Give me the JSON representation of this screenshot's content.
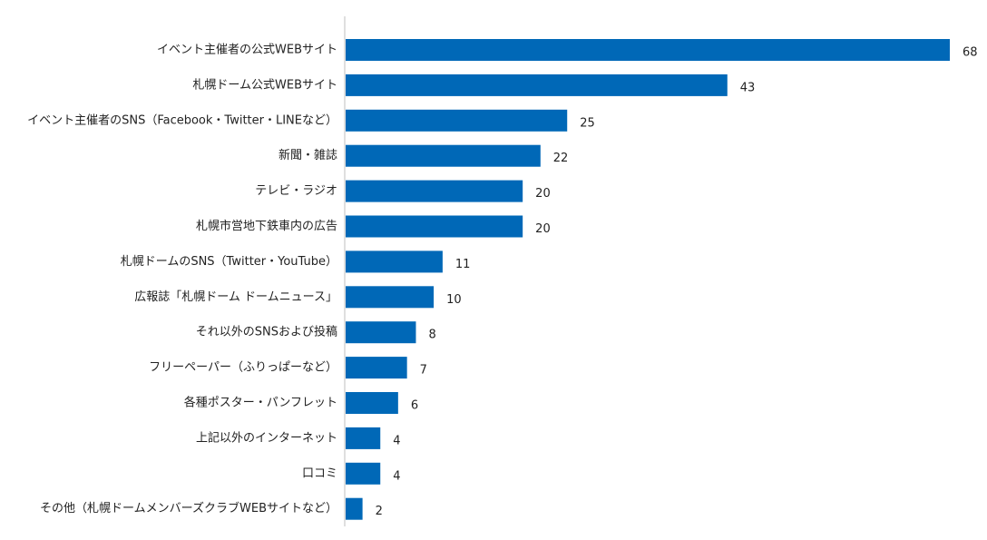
{
  "chart_data": {
    "type": "bar",
    "orientation": "horizontal",
    "title": "",
    "xlabel": "",
    "ylabel": "",
    "xlim": [
      0,
      70
    ],
    "grid": false,
    "legend": "none",
    "bar_color": "#0068b7",
    "axis_color": "#bfbfbf",
    "categories": [
      "イベント主催者の公式WEBサイト",
      "札幌ドーム公式WEBサイト",
      "イベント主催者のSNS（Facebook・Twitter・LINEなど）",
      "新聞・雑誌",
      "テレビ・ラジオ",
      "札幌市営地下鉄車内の広告",
      "札幌ドームのSNS（Twitter・YouTube）",
      "広報誌「札幌ドーム ドームニュース」",
      "それ以外のSNSおよび投稿",
      "フリーペーパー（ふりっぱーなど）",
      "各種ポスター・パンフレット",
      "上記以外のインターネット",
      "口コミ",
      "その他（札幌ドームメンバーズクラブWEBサイトなど）"
    ],
    "values": [
      68,
      43,
      25,
      22,
      20,
      20,
      11,
      10,
      8,
      7,
      6,
      4,
      4,
      2
    ]
  }
}
